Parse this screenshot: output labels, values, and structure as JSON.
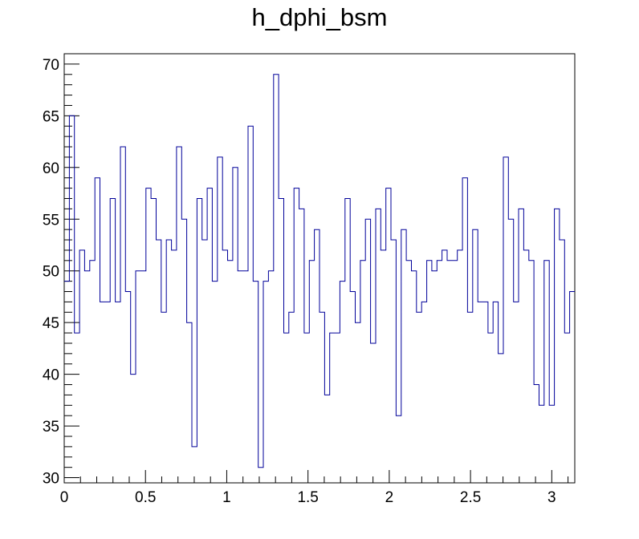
{
  "chart_data": {
    "type": "line",
    "histogram": true,
    "title": "h_dphi_bsm",
    "xlabel": "",
    "ylabel": "",
    "xlim": [
      0,
      3.1416
    ],
    "ylim": [
      29.5,
      71
    ],
    "bin_width": 0.031416,
    "x_ticks": [
      0,
      0.5,
      1,
      1.5,
      2,
      2.5,
      3
    ],
    "x_tick_labels": [
      "0",
      "0.5",
      "1",
      "1.5",
      "2",
      "2.5",
      "3"
    ],
    "y_ticks": [
      30,
      35,
      40,
      45,
      50,
      55,
      60,
      65,
      70
    ],
    "y_tick_labels": [
      "30",
      "35",
      "40",
      "45",
      "50",
      "55",
      "60",
      "65",
      "70"
    ],
    "line_color": "#000099",
    "grid": false,
    "legend": "none",
    "values": [
      49,
      65,
      44,
      52,
      50,
      51,
      59,
      47,
      47,
      57,
      47,
      62,
      48,
      40,
      50,
      50,
      58,
      57,
      53,
      46,
      53,
      52,
      62,
      55,
      45,
      33,
      57,
      53,
      58,
      49,
      61,
      52,
      51,
      60,
      50,
      50,
      64,
      49,
      31,
      49,
      50,
      69,
      57,
      44,
      46,
      58,
      56,
      44,
      51,
      54,
      46,
      38,
      44,
      44,
      49,
      57,
      48,
      45,
      51,
      55,
      43,
      56,
      52,
      58,
      53,
      36,
      54,
      51,
      50,
      46,
      47,
      51,
      50,
      51,
      52,
      51,
      51,
      52,
      59,
      46,
      54,
      47,
      47,
      44,
      47,
      42,
      61,
      55,
      47,
      56,
      52,
      51,
      39,
      37,
      51,
      37,
      56,
      53,
      44,
      48
    ]
  }
}
